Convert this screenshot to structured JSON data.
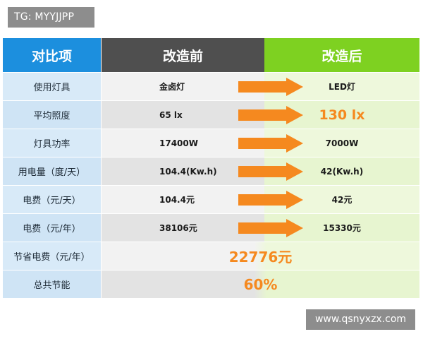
{
  "tag": "TG: MYYJJPP",
  "watermark": "www.qsnyxzx.com",
  "header": {
    "col1": "对比项",
    "col2": "改造前",
    "col3": "改造后"
  },
  "rows": [
    {
      "label": "使用灯具",
      "before": "金卤灯",
      "after": "LED灯"
    },
    {
      "label": "平均照度",
      "before": "65 lx",
      "after": "130 lx"
    },
    {
      "label": "灯具功率",
      "before": "17400W",
      "after": "7000W"
    },
    {
      "label": "用电量（度/天）",
      "before": "104.4(Kw.h)",
      "after": "42(Kw.h)"
    },
    {
      "label": "电费（元/天）",
      "before": "104.4元",
      "after": "42元"
    },
    {
      "label": "电费（元/年）",
      "before": "38106元",
      "after": "15330元"
    }
  ],
  "summary": [
    {
      "label": "节省电费（元/年）",
      "value": "22776元"
    },
    {
      "label": "总共节能",
      "value": "60%"
    }
  ],
  "colors": {
    "header_blue": "#1c8fde",
    "header_dark": "#4f4f4f",
    "header_green": "#7ed121",
    "arrow_orange": "#f5891f",
    "highlight_orange": "#f5891f"
  },
  "icons": {
    "arrow": "right-arrow-icon"
  }
}
